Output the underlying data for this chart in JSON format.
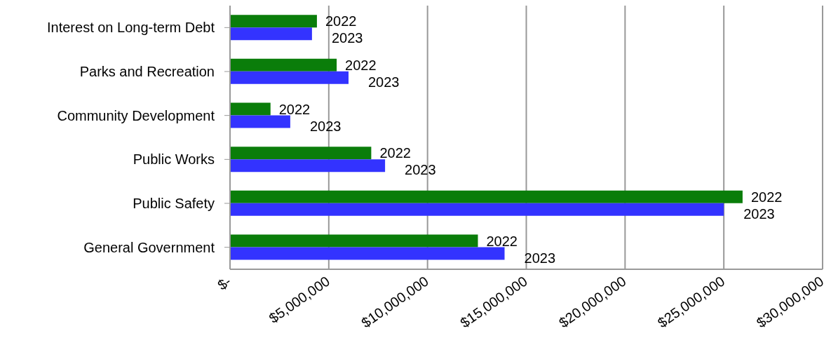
{
  "chart_data": {
    "type": "bar",
    "orientation": "horizontal",
    "categories": [
      "Interest on Long-term Debt",
      "Parks and Recreation",
      "Community Development",
      "Public Works",
      "Public Safety",
      "General Government"
    ],
    "series": [
      {
        "name": "2022",
        "color": "#0a7d0a",
        "values": [
          4400000,
          5400000,
          2050000,
          7150000,
          25950000,
          12550000
        ]
      },
      {
        "name": "2023",
        "color": "#3333ff",
        "values": [
          4150000,
          6000000,
          3050000,
          7850000,
          25000000,
          13900000
        ]
      }
    ],
    "xlim": [
      0,
      30000000
    ],
    "xticks": [
      {
        "value": 0,
        "label": "$-"
      },
      {
        "value": 5000000,
        "label": "$5,000,000"
      },
      {
        "value": 10000000,
        "label": "$10,000,000"
      },
      {
        "value": 15000000,
        "label": "$15,000,000"
      },
      {
        "value": 20000000,
        "label": "$20,000,000"
      },
      {
        "value": 25000000,
        "label": "$25,000,000"
      },
      {
        "value": 30000000,
        "label": "$30,000,000"
      }
    ],
    "grid": "x",
    "legend": false
  }
}
